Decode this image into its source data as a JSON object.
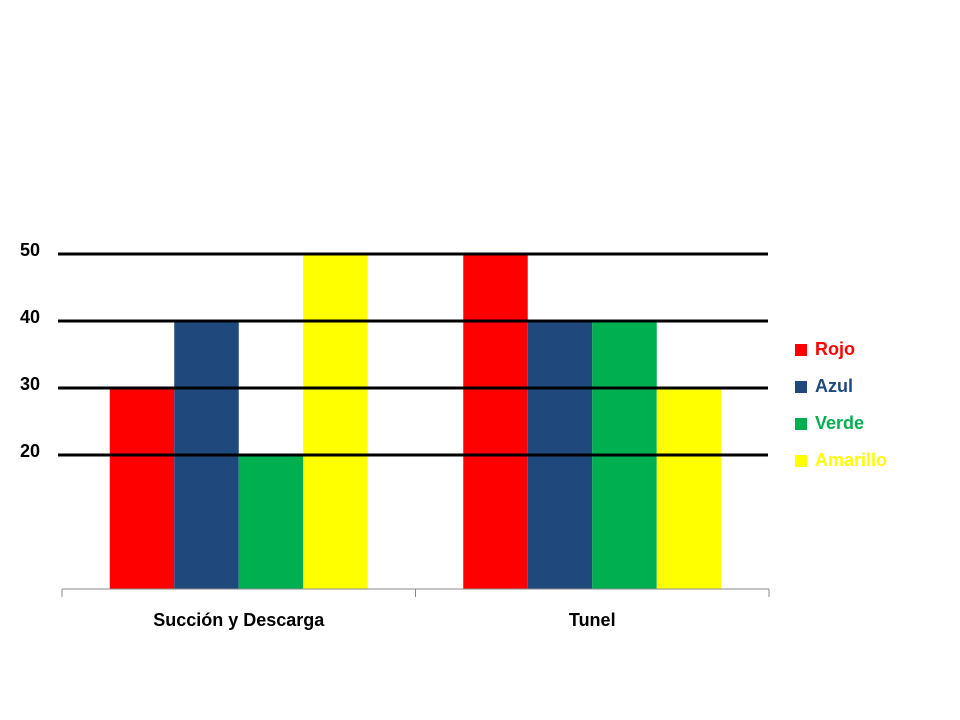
{
  "chart_data": {
    "type": "bar",
    "categories": [
      "Succión y Descarga",
      "Tunel"
    ],
    "series": [
      {
        "name": "Rojo",
        "color": "#ff0000",
        "values": [
          30,
          50
        ]
      },
      {
        "name": "Azul",
        "color": "#1f497d",
        "values": [
          40,
          40
        ]
      },
      {
        "name": "Verde",
        "color": "#00b050",
        "values": [
          20,
          40
        ]
      },
      {
        "name": "Amarillo",
        "color": "#ffff00",
        "values": [
          50,
          30
        ]
      }
    ],
    "ylim": [
      0,
      50
    ],
    "yticks": [
      20,
      30,
      40,
      50
    ],
    "grid": true,
    "legend": "right"
  }
}
